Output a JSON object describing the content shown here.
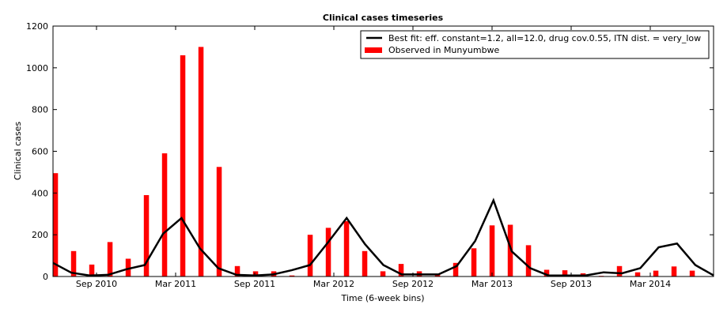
{
  "chart_data": {
    "type": "bar",
    "title": "Clinical cases timeseries",
    "xlabel": "Time (6-week bins)",
    "ylabel": "Clinical cases",
    "ylim": [
      0,
      1200
    ],
    "yticks": [
      0,
      200,
      400,
      600,
      800,
      1000,
      1200
    ],
    "xticks": [
      "Sep 2010",
      "Mar 2011",
      "Sep 2011",
      "Mar 2012",
      "Sep 2012",
      "Mar 2013",
      "Sep 2013",
      "Mar 2014"
    ],
    "legend_position": "top-right",
    "grid": false,
    "colors": {
      "bar": "#ff0000",
      "line": "#000000"
    },
    "series": [
      {
        "name": "Observed in Munyumbwe",
        "kind": "bar",
        "values": [
          495,
          122,
          57,
          165,
          85,
          390,
          590,
          1060,
          1100,
          525,
          50,
          25,
          25,
          5,
          200,
          233,
          265,
          122,
          25,
          60,
          25,
          10,
          65,
          135,
          245,
          248,
          150,
          32,
          30,
          15,
          3,
          50,
          20,
          28,
          48,
          28
        ]
      },
      {
        "name": "Best fit: eff. constant=1.2, all=12.0, drug cov.0.55, ITN dist. = very_low",
        "kind": "line",
        "values": [
          65,
          18,
          5,
          8,
          35,
          55,
          205,
          280,
          135,
          40,
          8,
          5,
          10,
          30,
          55,
          165,
          280,
          155,
          55,
          10,
          10,
          10,
          50,
          170,
          365,
          120,
          40,
          5,
          5,
          5,
          20,
          15,
          40,
          140,
          158,
          55,
          5
        ]
      }
    ]
  }
}
